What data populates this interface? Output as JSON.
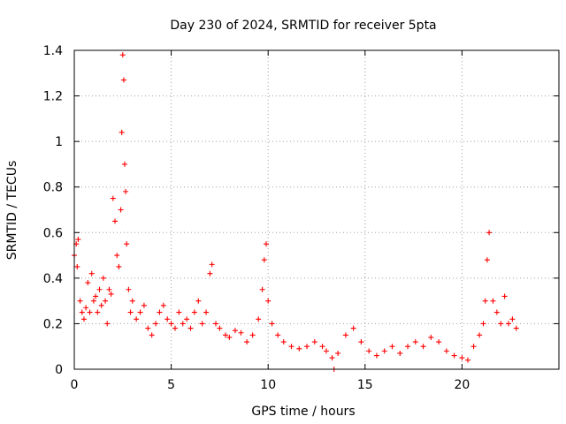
{
  "chart_data": {
    "type": "scatter",
    "title": "Day 230 of 2024, SRMTID for receiver 5pta",
    "xlabel": "GPS time / hours",
    "ylabel": "SRMTID / TECUs",
    "xlim": [
      0,
      25
    ],
    "ylim": [
      0,
      1.4
    ],
    "xticks": [
      0,
      5,
      10,
      15,
      20
    ],
    "xtick_labels": [
      "0",
      "5",
      "10",
      "15",
      "20"
    ],
    "yticks": [
      0,
      0.2,
      0.4,
      0.6,
      0.8,
      1.0,
      1.2,
      1.4
    ],
    "ytick_labels": [
      "0",
      "0.2",
      "0.4",
      "0.6",
      "0.8",
      "1",
      "1.2",
      "1.4"
    ],
    "grid": true,
    "marker": "plus",
    "color": "#ff0000",
    "series": [
      {
        "name": "SRMTID",
        "x": [
          0.0,
          0.1,
          0.15,
          0.2,
          0.3,
          0.4,
          0.5,
          0.6,
          0.7,
          0.8,
          0.9,
          1.0,
          1.1,
          1.2,
          1.3,
          1.4,
          1.5,
          1.6,
          1.7,
          1.8,
          1.9,
          2.0,
          2.1,
          2.2,
          2.3,
          2.4,
          2.45,
          2.5,
          2.55,
          2.6,
          2.65,
          2.7,
          2.8,
          2.9,
          3.0,
          3.2,
          3.4,
          3.6,
          3.8,
          4.0,
          4.2,
          4.4,
          4.6,
          4.8,
          5.0,
          5.2,
          5.4,
          5.6,
          5.8,
          6.0,
          6.2,
          6.4,
          6.6,
          6.8,
          7.0,
          7.1,
          7.3,
          7.5,
          7.8,
          8.0,
          8.3,
          8.6,
          8.9,
          9.2,
          9.5,
          9.7,
          9.8,
          9.9,
          10.0,
          10.2,
          10.5,
          10.8,
          11.2,
          11.6,
          12.0,
          12.4,
          12.8,
          13.0,
          13.3,
          13.4,
          13.6,
          14.0,
          14.4,
          14.8,
          15.2,
          15.6,
          16.0,
          16.4,
          16.8,
          17.2,
          17.6,
          18.0,
          18.4,
          18.8,
          19.2,
          19.6,
          20.0,
          20.3,
          20.6,
          20.9,
          21.1,
          21.2,
          21.3,
          21.4,
          21.6,
          21.8,
          22.0,
          22.2,
          22.4,
          22.6,
          22.8
        ],
        "y": [
          0.5,
          0.55,
          0.45,
          0.57,
          0.3,
          0.25,
          0.22,
          0.27,
          0.38,
          0.25,
          0.42,
          0.3,
          0.32,
          0.25,
          0.35,
          0.28,
          0.4,
          0.3,
          0.2,
          0.35,
          0.33,
          0.75,
          0.65,
          0.5,
          0.45,
          0.7,
          1.04,
          1.38,
          1.27,
          0.9,
          0.78,
          0.55,
          0.35,
          0.25,
          0.3,
          0.22,
          0.25,
          0.28,
          0.18,
          0.15,
          0.2,
          0.25,
          0.28,
          0.22,
          0.2,
          0.18,
          0.25,
          0.2,
          0.22,
          0.18,
          0.25,
          0.3,
          0.2,
          0.25,
          0.42,
          0.46,
          0.2,
          0.18,
          0.15,
          0.14,
          0.17,
          0.16,
          0.12,
          0.15,
          0.22,
          0.35,
          0.48,
          0.55,
          0.3,
          0.2,
          0.15,
          0.12,
          0.1,
          0.09,
          0.1,
          0.12,
          0.1,
          0.08,
          0.05,
          0.0,
          0.07,
          0.15,
          0.18,
          0.12,
          0.08,
          0.06,
          0.08,
          0.1,
          0.07,
          0.1,
          0.12,
          0.1,
          0.14,
          0.12,
          0.08,
          0.06,
          0.05,
          0.04,
          0.1,
          0.15,
          0.2,
          0.3,
          0.48,
          0.6,
          0.3,
          0.25,
          0.2,
          0.32,
          0.2,
          0.22,
          0.18
        ]
      }
    ]
  }
}
